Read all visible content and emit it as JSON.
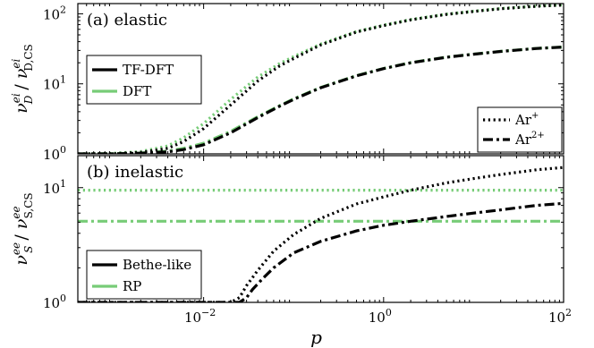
{
  "chart_data": [
    {
      "type": "line",
      "panel_label": "(a) elastic",
      "ylabel": {
        "base": "ν",
        "sub": "D",
        "sup": "ei",
        "sep": " / ",
        "base2": "ν",
        "sub2": "D,CS",
        "sup2": "ei"
      },
      "xscale": "log",
      "yscale": "log",
      "xlim": [
        0.0004,
        100
      ],
      "ylim": [
        1,
        140
      ],
      "x_ticks": [
        {
          "mant": "10",
          "exp": "−2",
          "value": 0.01
        },
        {
          "mant": "10",
          "exp": "0",
          "value": 1
        },
        {
          "mant": "10",
          "exp": "2",
          "value": 100
        }
      ],
      "y_ticks": [
        {
          "mant": "10",
          "exp": "0",
          "value": 1
        },
        {
          "mant": "10",
          "exp": "1",
          "value": 10
        },
        {
          "mant": "10",
          "exp": "2",
          "value": 100
        }
      ],
      "legend_methods": {
        "placement": "top-left",
        "entries": [
          {
            "label": "TF-DFT",
            "color": "#000000"
          },
          {
            "label": "DFT",
            "color": "#77cc77"
          }
        ]
      },
      "legend_ions": {
        "placement": "bottom-right",
        "entries": [
          {
            "label": "Ar",
            "sup": "+",
            "style": "dotted"
          },
          {
            "label": "Ar",
            "sup": "2+",
            "style": "dashdot"
          }
        ]
      },
      "series": [
        {
          "method": "TF-DFT",
          "ion": "Ar+",
          "style": "dotted",
          "color": "#000000",
          "x": [
            0.0004,
            0.001,
            0.002,
            0.004,
            0.006,
            0.01,
            0.02,
            0.04,
            0.07,
            0.1,
            0.2,
            0.5,
            1,
            2,
            5,
            10,
            20,
            50,
            100
          ],
          "y": [
            1.0,
            1.01,
            1.05,
            1.2,
            1.5,
            2.3,
            5.0,
            11,
            18,
            23,
            36,
            55,
            68,
            82,
            98,
            108,
            118,
            128,
            133
          ]
        },
        {
          "method": "DFT",
          "ion": "Ar+",
          "style": "dotted",
          "color": "#77cc77",
          "x": [
            0.0004,
            0.001,
            0.002,
            0.004,
            0.006,
            0.01,
            0.02,
            0.04,
            0.07,
            0.1,
            0.2,
            0.5,
            1,
            2,
            5,
            10,
            20,
            50,
            100
          ],
          "y": [
            1.0,
            1.02,
            1.08,
            1.3,
            1.7,
            2.7,
            6.0,
            12.5,
            19.5,
            24.5,
            37,
            56,
            69,
            83,
            99,
            109,
            119,
            129,
            134
          ]
        },
        {
          "method": "TF-DFT",
          "ion": "Ar2+",
          "style": "dashdot",
          "color": "#000000",
          "x": [
            0.0004,
            0.001,
            0.002,
            0.004,
            0.006,
            0.01,
            0.02,
            0.04,
            0.07,
            0.1,
            0.2,
            0.5,
            1,
            2,
            5,
            10,
            20,
            50,
            100
          ],
          "y": [
            1.0,
            1.0,
            1.02,
            1.07,
            1.15,
            1.35,
            2.0,
            3.3,
            4.8,
            6.0,
            8.8,
            13,
            16.5,
            20,
            24,
            26.5,
            29,
            32,
            33.5
          ]
        },
        {
          "method": "DFT",
          "ion": "Ar2+",
          "style": "dashdot",
          "color": "#77cc77",
          "x": [
            0.0004,
            0.001,
            0.002,
            0.004,
            0.006,
            0.01,
            0.02,
            0.04,
            0.07,
            0.1,
            0.2,
            0.5,
            1,
            2,
            5,
            10,
            20,
            50,
            100
          ],
          "y": [
            1.0,
            1.01,
            1.03,
            1.1,
            1.2,
            1.42,
            2.1,
            3.4,
            4.9,
            6.1,
            8.9,
            13.1,
            16.6,
            20.1,
            24.1,
            26.6,
            29.1,
            32.1,
            33.6
          ]
        }
      ]
    },
    {
      "type": "line",
      "panel_label": "(b) inelastic",
      "ylabel": {
        "base": "ν",
        "sub": "S",
        "sup": "ee",
        "sep": " / ",
        "base2": "ν",
        "sub2": "S,CS",
        "sup2": "ee"
      },
      "xlabel": "p",
      "xscale": "log",
      "yscale": "log",
      "xlim": [
        0.0004,
        100
      ],
      "ylim": [
        1,
        19
      ],
      "x_ticks": [
        {
          "mant": "10",
          "exp": "−2",
          "value": 0.01
        },
        {
          "mant": "10",
          "exp": "0",
          "value": 1
        },
        {
          "mant": "10",
          "exp": "2",
          "value": 100
        }
      ],
      "y_ticks": [
        {
          "mant": "10",
          "exp": "0",
          "value": 1
        },
        {
          "mant": "10",
          "exp": "1",
          "value": 10
        }
      ],
      "legend_methods": {
        "placement": "bottom-left",
        "entries": [
          {
            "label": "Bethe-like",
            "color": "#000000"
          },
          {
            "label": "RP",
            "color": "#77cc77"
          }
        ]
      },
      "series": [
        {
          "method": "Bethe-like",
          "ion": "Ar+",
          "style": "dotted",
          "color": "#000000",
          "x": [
            0.0004,
            0.02,
            0.025,
            0.03,
            0.04,
            0.06,
            0.1,
            0.2,
            0.5,
            1,
            2,
            5,
            10,
            20,
            50,
            100
          ],
          "y": [
            1.0,
            1.0,
            1.1,
            1.4,
            1.9,
            2.8,
            3.9,
            5.4,
            7.2,
            8.3,
            9.5,
            11,
            12,
            13,
            14.3,
            15
          ]
        },
        {
          "method": "Bethe-like",
          "ion": "Ar2+",
          "style": "dashdot",
          "color": "#000000",
          "x": [
            0.0004,
            0.025,
            0.03,
            0.035,
            0.045,
            0.06,
            0.1,
            0.2,
            0.5,
            1,
            2,
            5,
            10,
            20,
            50,
            100
          ],
          "y": [
            1.0,
            1.0,
            1.1,
            1.3,
            1.6,
            2.0,
            2.7,
            3.4,
            4.2,
            4.7,
            5.1,
            5.6,
            6.0,
            6.4,
            7.0,
            7.3
          ]
        },
        {
          "method": "RP",
          "ion": "Ar+",
          "style": "dotted",
          "color": "#77cc77",
          "x": [
            0.0004,
            100
          ],
          "y": [
            9.5,
            9.5
          ]
        },
        {
          "method": "RP",
          "ion": "Ar2+",
          "style": "dashdot",
          "color": "#77cc77",
          "x": [
            0.0004,
            100
          ],
          "y": [
            5.1,
            5.1
          ]
        }
      ]
    }
  ]
}
